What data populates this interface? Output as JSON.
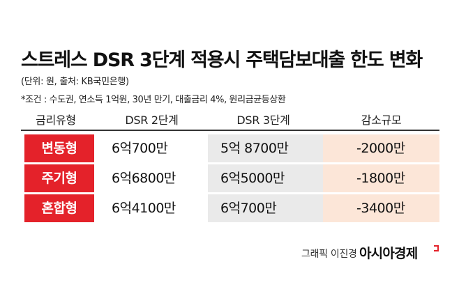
{
  "title": "스트레스 DSR 3단계 적용시 주택담보대출 한도 변화",
  "unit_note": "(단위: 원, 출처: KB국민은행)",
  "condition_note": "*조건 : 수도권, 연소득 1억원, 30년 만기, 대출금리 4%, 원리금균등상환",
  "headers": {
    "type": "금리유형",
    "dsr2": "DSR 2단계",
    "dsr3": "DSR 3단계",
    "reduce": "감소규모"
  },
  "rows": [
    {
      "type": "변동형",
      "dsr2": "6억700만",
      "dsr3": "5억 8700만",
      "reduce": "-2000만"
    },
    {
      "type": "주기형",
      "dsr2": "6억6800만",
      "dsr3": "6억5000만",
      "reduce": "-1800만"
    },
    {
      "type": "혼합형",
      "dsr2": "6억4100만",
      "dsr3": "6억700만",
      "reduce": "-3400만"
    }
  ],
  "credit": "그래픽 이진경",
  "brand": "아시아경제",
  "colors": {
    "accent_red": "#e4222a",
    "dsr3_bg": "#eaeaea",
    "reduce_bg": "#fce6d8"
  }
}
